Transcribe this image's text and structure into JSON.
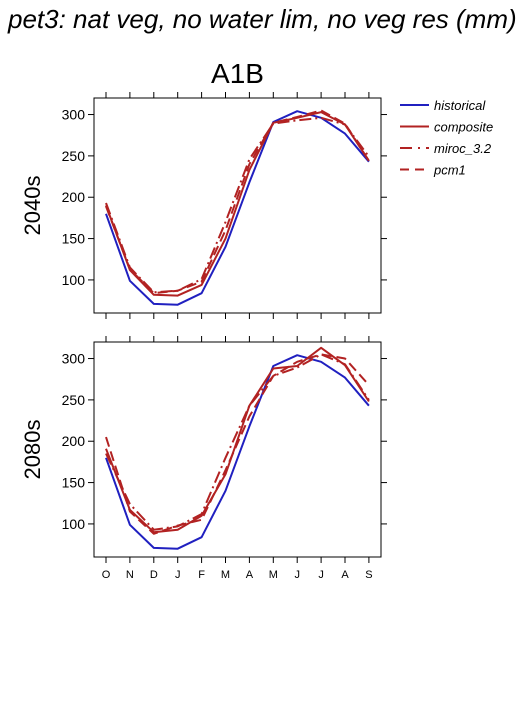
{
  "page": {
    "title": "pet3: nat veg, no water lim, no veg res (mm)"
  },
  "chart_data": [
    {
      "type": "line",
      "title": "A1B",
      "ylabel": "2040s",
      "xlabel": "",
      "categories": [
        "O",
        "N",
        "D",
        "J",
        "F",
        "M",
        "A",
        "M",
        "J",
        "J",
        "A",
        "S"
      ],
      "ylim": [
        60,
        320
      ],
      "yticks": [
        100,
        150,
        200,
        250,
        300
      ],
      "grid": false,
      "legend_position": "right",
      "series": [
        {
          "name": "historical",
          "color": "#2020c0",
          "dash": "solid",
          "values": [
            180,
            99,
            71,
            70,
            84,
            140,
            218,
            291,
            304,
            296,
            277,
            243
          ]
        },
        {
          "name": "composite",
          "color": "#b22222",
          "dash": "solid",
          "values": [
            190,
            112,
            82,
            81,
            94,
            150,
            233,
            290,
            296,
            303,
            288,
            244
          ]
        },
        {
          "name": "miroc_3.2",
          "color": "#b22222",
          "dash": "dashdot",
          "values": [
            193,
            115,
            85,
            87,
            101,
            170,
            246,
            289,
            293,
            296,
            288,
            249
          ]
        },
        {
          "name": "pcm1",
          "color": "#b22222",
          "dash": "dashed",
          "values": [
            189,
            113,
            84,
            87,
            98,
            160,
            240,
            290,
            297,
            305,
            289,
            244
          ]
        }
      ]
    },
    {
      "type": "line",
      "title": "",
      "ylabel": "2080s",
      "xlabel": "",
      "categories": [
        "O",
        "N",
        "D",
        "J",
        "F",
        "M",
        "A",
        "M",
        "J",
        "J",
        "A",
        "S"
      ],
      "ylim": [
        60,
        320
      ],
      "yticks": [
        100,
        150,
        200,
        250,
        300
      ],
      "grid": false,
      "series": [
        {
          "name": "historical",
          "color": "#2020c0",
          "dash": "solid",
          "values": [
            180,
            99,
            71,
            70,
            84,
            140,
            218,
            291,
            304,
            296,
            277,
            243
          ]
        },
        {
          "name": "composite",
          "color": "#b22222",
          "dash": "solid",
          "values": [
            191,
            117,
            90,
            93,
            110,
            160,
            243,
            288,
            291,
            313,
            292,
            248
          ]
        },
        {
          "name": "miroc_3.2",
          "color": "#b22222",
          "dash": "dashdot",
          "values": [
            185,
            124,
            93,
            97,
            112,
            180,
            243,
            279,
            289,
            305,
            293,
            250
          ]
        },
        {
          "name": "pcm1",
          "color": "#b22222",
          "dash": "dashed",
          "values": [
            205,
            115,
            88,
            98,
            105,
            165,
            230,
            279,
            296,
            305,
            300,
            268
          ]
        }
      ]
    }
  ]
}
